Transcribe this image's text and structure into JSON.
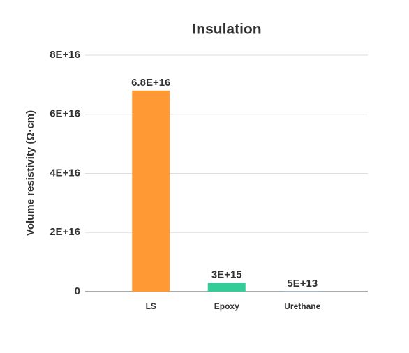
{
  "chart_data": {
    "type": "bar",
    "title": "Insulation",
    "y_label": "Volume resistivity (Ω·cm)",
    "categories": [
      "LS",
      "Epoxy",
      "Urethane"
    ],
    "values": [
      68000000000000000,
      3000000000000000,
      50000000000000
    ],
    "value_labels": [
      "6.8E+16",
      "3E+15",
      "5E+13"
    ],
    "colors": [
      "#ff9933",
      "#33cc99",
      "#3399ff"
    ],
    "ylim": [
      0,
      80000000000000000
    ],
    "yticks": [
      0,
      {
        "value": 20000000000000000,
        "label": "2E+16"
      },
      {
        "value": 40000000000000000,
        "label": "4E+16"
      },
      {
        "value": 60000000000000000,
        "label": "6E+16"
      },
      {
        "value": 80000000000000000,
        "label": "8E+16"
      }
    ],
    "grid": true
  }
}
